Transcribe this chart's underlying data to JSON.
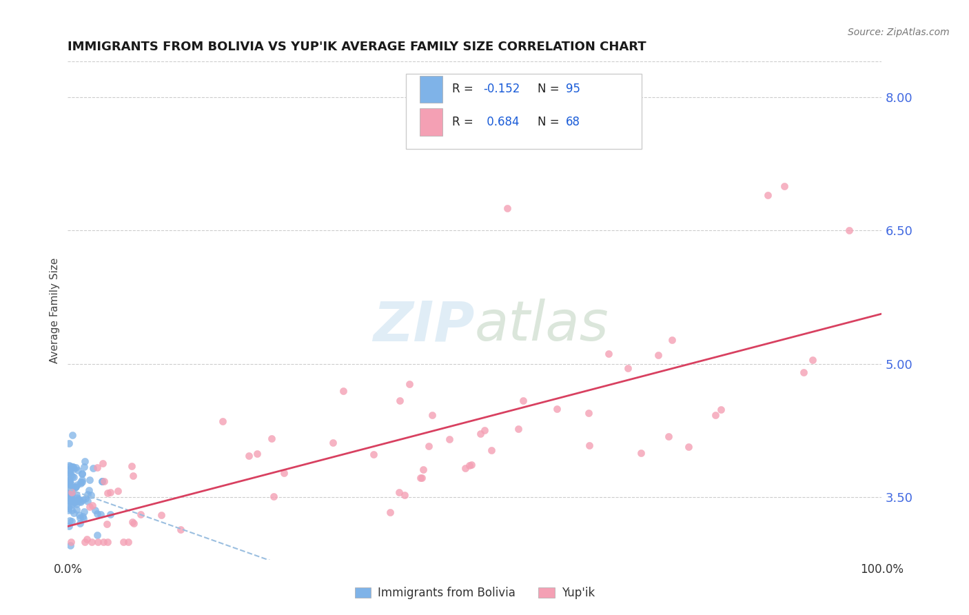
{
  "title": "IMMIGRANTS FROM BOLIVIA VS YUP'IK AVERAGE FAMILY SIZE CORRELATION CHART",
  "source": "Source: ZipAtlas.com",
  "ylabel": "Average Family Size",
  "xlim": [
    0,
    1.0
  ],
  "ylim": [
    2.8,
    8.4
  ],
  "yticks": [
    3.5,
    5.0,
    6.5,
    8.0
  ],
  "xtick_labels": [
    "0.0%",
    "100.0%"
  ],
  "background_color": "#ffffff",
  "grid_color": "#cccccc",
  "color_bolivia": "#7fb3e8",
  "color_yupik": "#f4a0b4",
  "line_bolivia_color": "#9bbfe0",
  "line_yupik_color": "#d84060",
  "title_fontsize": 13,
  "source_fontsize": 10,
  "ytick_color": "#4169e1",
  "legend_text_color": "#222222",
  "legend_val_color": "#1a5cd8"
}
